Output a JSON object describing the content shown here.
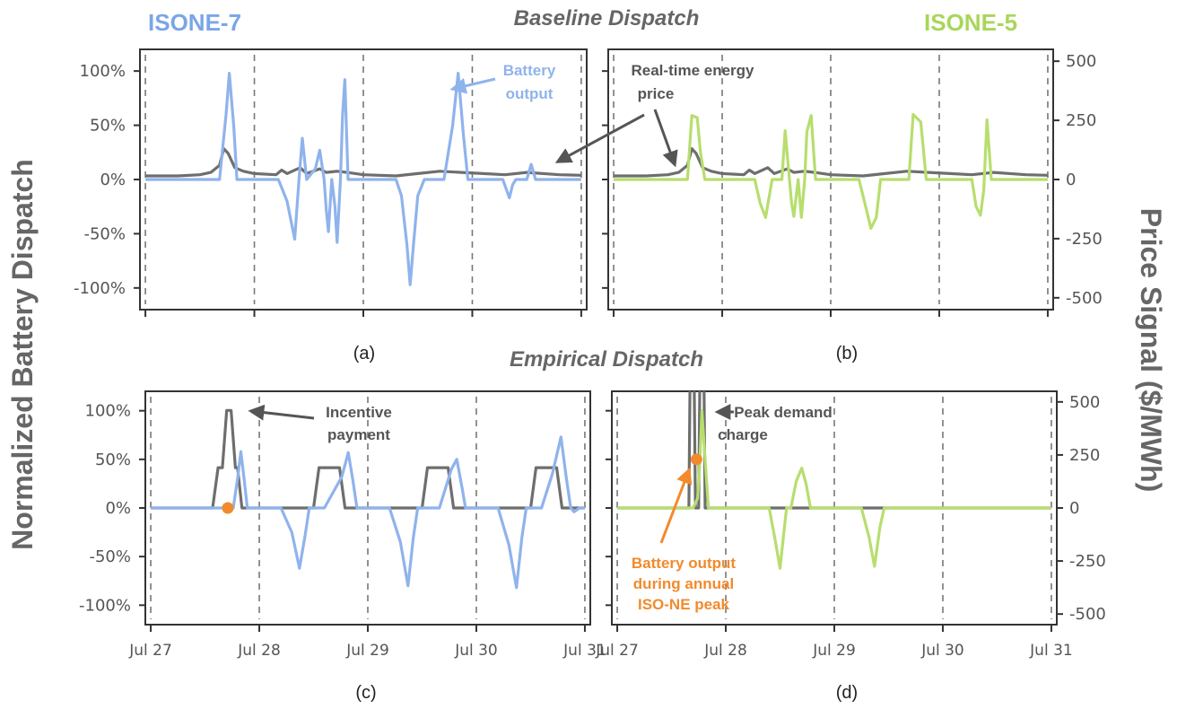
{
  "colors": {
    "isone7": "#8fb3ec",
    "isone5": "#b7de6e",
    "price": "#6e6e6e",
    "orange": "#f28a2c",
    "axis": "#333333",
    "grid": "#777777"
  },
  "headers": {
    "left": "ISONE-7",
    "right": "ISONE-5",
    "baseline": "Baseline Dispatch",
    "empirical": "Empirical Dispatch"
  },
  "axes": {
    "ylabel_left": "Normalized Battery Dispatch",
    "ylabel_right": "Price Signal ($/MWh)",
    "pct_ticks": [
      "100%",
      "50%",
      "0%",
      "-50%",
      "-100%"
    ],
    "price_ticks": [
      "500",
      "250",
      "0",
      "-250",
      "-500"
    ],
    "date_ticks": [
      "Jul 27",
      "Jul 28",
      "Jul 29",
      "Jul 30",
      "Jul 31"
    ],
    "dispatch_range": [
      -120,
      120
    ],
    "price_range": [
      -550,
      550
    ],
    "x_range": [
      -0.05,
      4.05
    ]
  },
  "annotations": {
    "battery_output": [
      "Battery",
      "output"
    ],
    "rt_price": [
      "Real-time energy",
      "price"
    ],
    "incentive": [
      "Incentive",
      "payment"
    ],
    "peak_demand": [
      "Peak demand",
      "charge"
    ],
    "annual_peak": [
      "Battery output",
      "during annual",
      "ISO-NE peak"
    ]
  },
  "panel_labels": [
    "(a)",
    "(b)",
    "(c)",
    "(d)"
  ],
  "chart_data": [
    {
      "panel": "(a)",
      "type": "line",
      "series": [
        {
          "name": "Battery output",
          "units": "% of capacity",
          "points": [
            [
              0,
              0
            ],
            [
              0.68,
              0
            ],
            [
              0.74,
              60
            ],
            [
              0.77,
              98
            ],
            [
              0.81,
              50
            ],
            [
              0.84,
              0
            ],
            [
              1.1,
              0
            ],
            [
              1.22,
              0
            ],
            [
              1.3,
              -20
            ],
            [
              1.37,
              -55
            ],
            [
              1.41,
              0
            ],
            [
              1.44,
              38
            ],
            [
              1.48,
              0
            ],
            [
              1.56,
              10
            ],
            [
              1.6,
              27
            ],
            [
              1.64,
              0
            ],
            [
              1.66,
              -28
            ],
            [
              1.68,
              -48
            ],
            [
              1.71,
              0
            ],
            [
              1.74,
              -25
            ],
            [
              1.76,
              -58
            ],
            [
              1.79,
              0
            ],
            [
              1.81,
              60
            ],
            [
              1.83,
              92
            ],
            [
              1.86,
              0
            ],
            [
              2.3,
              0
            ],
            [
              2.35,
              -15
            ],
            [
              2.4,
              -60
            ],
            [
              2.43,
              -97
            ],
            [
              2.46,
              -60
            ],
            [
              2.5,
              -15
            ],
            [
              2.56,
              0
            ],
            [
              2.74,
              0
            ],
            [
              2.82,
              50
            ],
            [
              2.87,
              98
            ],
            [
              2.92,
              40
            ],
            [
              2.96,
              0
            ],
            [
              3.28,
              0
            ],
            [
              3.34,
              -17
            ],
            [
              3.37,
              -5
            ],
            [
              3.4,
              0
            ],
            [
              3.5,
              0
            ],
            [
              3.54,
              14
            ],
            [
              3.58,
              0
            ],
            [
              3.75,
              0
            ],
            [
              4.0,
              0
            ]
          ]
        },
        {
          "name": "Real-time energy price",
          "units": "$/MWh",
          "points": [
            [
              0,
              15
            ],
            [
              0.3,
              15
            ],
            [
              0.5,
              20
            ],
            [
              0.6,
              30
            ],
            [
              0.68,
              60
            ],
            [
              0.72,
              130
            ],
            [
              0.76,
              110
            ],
            [
              0.82,
              50
            ],
            [
              0.9,
              35
            ],
            [
              1.0,
              25
            ],
            [
              1.2,
              20
            ],
            [
              1.25,
              40
            ],
            [
              1.3,
              25
            ],
            [
              1.42,
              50
            ],
            [
              1.48,
              25
            ],
            [
              1.6,
              45
            ],
            [
              1.66,
              30
            ],
            [
              1.76,
              35
            ],
            [
              1.85,
              30
            ],
            [
              2.0,
              20
            ],
            [
              2.3,
              15
            ],
            [
              2.5,
              25
            ],
            [
              2.7,
              35
            ],
            [
              2.9,
              30
            ],
            [
              3.1,
              25
            ],
            [
              3.3,
              20
            ],
            [
              3.5,
              30
            ],
            [
              3.8,
              20
            ],
            [
              4.0,
              18
            ]
          ]
        }
      ]
    },
    {
      "panel": "(b)",
      "type": "line",
      "series": [
        {
          "name": "Battery output",
          "units": "% of capacity",
          "points": [
            [
              0,
              0
            ],
            [
              0.68,
              0
            ],
            [
              0.72,
              59
            ],
            [
              0.77,
              57
            ],
            [
              0.8,
              25
            ],
            [
              0.84,
              0
            ],
            [
              1.3,
              0
            ],
            [
              1.35,
              -22
            ],
            [
              1.4,
              -35
            ],
            [
              1.46,
              0
            ],
            [
              1.55,
              0
            ],
            [
              1.58,
              45
            ],
            [
              1.62,
              0
            ],
            [
              1.64,
              -22
            ],
            [
              1.66,
              -34
            ],
            [
              1.7,
              0
            ],
            [
              1.73,
              -35
            ],
            [
              1.76,
              0
            ],
            [
              1.78,
              44
            ],
            [
              1.82,
              59
            ],
            [
              1.86,
              0
            ],
            [
              2.26,
              0
            ],
            [
              2.31,
              -20
            ],
            [
              2.37,
              -45
            ],
            [
              2.42,
              -35
            ],
            [
              2.46,
              0
            ],
            [
              2.72,
              0
            ],
            [
              2.76,
              60
            ],
            [
              2.83,
              53
            ],
            [
              2.88,
              0
            ],
            [
              3.3,
              0
            ],
            [
              3.34,
              -25
            ],
            [
              3.38,
              -33
            ],
            [
              3.41,
              -10
            ],
            [
              3.44,
              55
            ],
            [
              3.48,
              0
            ],
            [
              4.0,
              0
            ]
          ]
        },
        {
          "name": "Real-time energy price",
          "units": "$/MWh",
          "points": [
            [
              0,
              15
            ],
            [
              0.3,
              15
            ],
            [
              0.5,
              20
            ],
            [
              0.6,
              30
            ],
            [
              0.68,
              60
            ],
            [
              0.72,
              130
            ],
            [
              0.76,
              110
            ],
            [
              0.82,
              50
            ],
            [
              0.9,
              35
            ],
            [
              1.0,
              25
            ],
            [
              1.2,
              20
            ],
            [
              1.25,
              40
            ],
            [
              1.3,
              25
            ],
            [
              1.42,
              50
            ],
            [
              1.48,
              25
            ],
            [
              1.6,
              45
            ],
            [
              1.66,
              30
            ],
            [
              1.76,
              35
            ],
            [
              1.85,
              30
            ],
            [
              2.0,
              20
            ],
            [
              2.3,
              15
            ],
            [
              2.5,
              25
            ],
            [
              2.7,
              35
            ],
            [
              2.9,
              30
            ],
            [
              3.1,
              25
            ],
            [
              3.3,
              20
            ],
            [
              3.5,
              30
            ],
            [
              3.8,
              20
            ],
            [
              4.0,
              18
            ]
          ]
        }
      ]
    },
    {
      "panel": "(c)",
      "type": "line",
      "series": [
        {
          "name": "Battery output",
          "units": "% of capacity",
          "points": [
            [
              0,
              0
            ],
            [
              0.7,
              0
            ],
            [
              0.76,
              0
            ],
            [
              0.8,
              30
            ],
            [
              0.83,
              58
            ],
            [
              0.86,
              30
            ],
            [
              0.89,
              0
            ],
            [
              1.2,
              0
            ],
            [
              1.3,
              -25
            ],
            [
              1.37,
              -62
            ],
            [
              1.42,
              -30
            ],
            [
              1.46,
              0
            ],
            [
              1.6,
              0
            ],
            [
              1.76,
              32
            ],
            [
              1.82,
              57
            ],
            [
              1.86,
              30
            ],
            [
              1.9,
              0
            ],
            [
              2.2,
              0
            ],
            [
              2.3,
              -35
            ],
            [
              2.37,
              -80
            ],
            [
              2.42,
              -30
            ],
            [
              2.46,
              0
            ],
            [
              2.66,
              0
            ],
            [
              2.77,
              40
            ],
            [
              2.82,
              50
            ],
            [
              2.87,
              20
            ],
            [
              2.9,
              0
            ],
            [
              3.2,
              0
            ],
            [
              3.3,
              -38
            ],
            [
              3.37,
              -82
            ],
            [
              3.42,
              -30
            ],
            [
              3.46,
              0
            ],
            [
              3.6,
              0
            ],
            [
              3.7,
              35
            ],
            [
              3.78,
              73
            ],
            [
              3.83,
              30
            ],
            [
              3.87,
              0
            ],
            [
              3.9,
              -4
            ],
            [
              3.95,
              0
            ],
            [
              4.0,
              0
            ]
          ]
        },
        {
          "name": "Incentive payment",
          "units": "$/MWh",
          "points": [
            [
              0,
              0
            ],
            [
              0.57,
              0
            ],
            [
              0.62,
              190
            ],
            [
              0.66,
              190
            ],
            [
              0.7,
              460
            ],
            [
              0.74,
              460
            ],
            [
              0.78,
              190
            ],
            [
              0.8,
              190
            ],
            [
              0.84,
              0
            ],
            [
              1.5,
              0
            ],
            [
              1.55,
              190
            ],
            [
              1.74,
              190
            ],
            [
              1.79,
              0
            ],
            [
              2.5,
              0
            ],
            [
              2.55,
              190
            ],
            [
              2.74,
              190
            ],
            [
              2.79,
              0
            ],
            [
              3.5,
              0
            ],
            [
              3.55,
              190
            ],
            [
              3.74,
              190
            ],
            [
              3.79,
              0
            ],
            [
              4.0,
              0
            ]
          ]
        }
      ],
      "markers": [
        {
          "label": "Battery output during annual ISO-NE peak",
          "x": 0.71,
          "value": 0
        }
      ]
    },
    {
      "panel": "(d)",
      "type": "line",
      "series": [
        {
          "name": "Battery output",
          "units": "% of capacity",
          "points": [
            [
              0,
              0
            ],
            [
              0.7,
              0
            ],
            [
              0.74,
              10
            ],
            [
              0.76,
              45
            ],
            [
              0.78,
              100
            ],
            [
              0.81,
              50
            ],
            [
              0.84,
              0
            ],
            [
              1.4,
              0
            ],
            [
              1.45,
              -30
            ],
            [
              1.5,
              -62
            ],
            [
              1.54,
              -20
            ],
            [
              1.56,
              0
            ],
            [
              1.6,
              0
            ],
            [
              1.65,
              28
            ],
            [
              1.7,
              41
            ],
            [
              1.74,
              25
            ],
            [
              1.78,
              0
            ],
            [
              2.25,
              0
            ],
            [
              2.32,
              -30
            ],
            [
              2.37,
              -60
            ],
            [
              2.42,
              -20
            ],
            [
              2.46,
              0
            ],
            [
              4.0,
              0
            ]
          ]
        },
        {
          "name": "Peak demand charge",
          "units": "$/MWh",
          "points": [
            [
              0,
              0
            ],
            [
              0.66,
              0
            ],
            [
              0.67,
              560
            ],
            [
              0.71,
              560
            ],
            [
              0.72,
              0
            ],
            [
              0.75,
              0
            ],
            [
              0.76,
              560
            ],
            [
              0.8,
              560
            ],
            [
              0.81,
              0
            ],
            [
              4.0,
              0
            ]
          ]
        }
      ],
      "markers": [
        {
          "label": "Battery output during annual ISO-NE peak",
          "x": 0.73,
          "value": 50
        }
      ]
    }
  ]
}
